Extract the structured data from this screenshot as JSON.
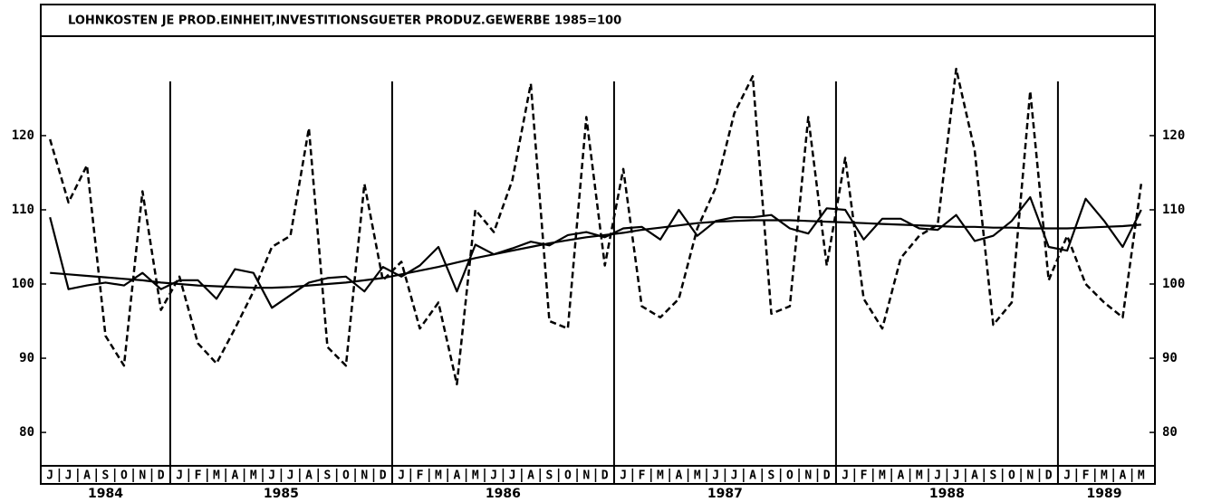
{
  "chart_data": {
    "type": "line",
    "title": "LOHNKOSTEN JE PROD.EINHEIT,INVESTITIONSGUETER PRODUZ.GEWERBE 1985=100",
    "years": [
      {
        "year": "1984",
        "months": [
          "J",
          "J",
          "A",
          "S",
          "O",
          "N",
          "D"
        ]
      },
      {
        "year": "1985",
        "months": [
          "J",
          "F",
          "M",
          "A",
          "M",
          "J",
          "J",
          "A",
          "S",
          "O",
          "N",
          "D"
        ]
      },
      {
        "year": "1986",
        "months": [
          "J",
          "F",
          "M",
          "A",
          "M",
          "J",
          "J",
          "A",
          "S",
          "O",
          "N",
          "D"
        ]
      },
      {
        "year": "1987",
        "months": [
          "J",
          "F",
          "M",
          "A",
          "M",
          "J",
          "J",
          "A",
          "S",
          "O",
          "N",
          "D"
        ]
      },
      {
        "year": "1988",
        "months": [
          "J",
          "F",
          "M",
          "A",
          "M",
          "J",
          "J",
          "A",
          "S",
          "O",
          "N",
          "D"
        ]
      },
      {
        "year": "1989",
        "months": [
          "J",
          "F",
          "M",
          "A",
          "M"
        ]
      }
    ],
    "series": [
      {
        "color": "#000000",
        "style": "dashed",
        "values": [
          119.5,
          111,
          116,
          93,
          89,
          112.5,
          96.5,
          101,
          92,
          89.3,
          94,
          99,
          105,
          106.5,
          121,
          91.5,
          89,
          113.5,
          100.5,
          103,
          94,
          97.5,
          86.5,
          110,
          107,
          114,
          127,
          95,
          94,
          122.5,
          102.5,
          115.5,
          97,
          95.5,
          98,
          107.5,
          113,
          123,
          128,
          96,
          97,
          122.5,
          102.5,
          117,
          98,
          94,
          103.5,
          106.5,
          108,
          129,
          118,
          94.5,
          97.5,
          126,
          100.5,
          106.5,
          100,
          97.5,
          95.5,
          113.5
        ]
      },
      {
        "color": "#000000",
        "style": "solid",
        "values": [
          109,
          99.3,
          99.8,
          100.2,
          99.8,
          101.5,
          99.3,
          100.5,
          100.5,
          98,
          102,
          101.5,
          96.8,
          98.5,
          100.2,
          100.8,
          101,
          99,
          102.3,
          101,
          102.5,
          105,
          99,
          105.3,
          104,
          104.8,
          105.7,
          105.2,
          106.6,
          107,
          106.3,
          107.5,
          107.7,
          106,
          110,
          106.5,
          108.5,
          109,
          109,
          109.3,
          107.5,
          106.8,
          110.2,
          110,
          106,
          108.8,
          108.8,
          107.5,
          107.3,
          109.3,
          105.8,
          106.5,
          108.5,
          111.7,
          105,
          104.5,
          111.5,
          108.5,
          105,
          110
        ]
      },
      {
        "color": "#000000",
        "style": "solid",
        "values": [
          101.5,
          101.3,
          101.1,
          100.9,
          100.7,
          100.5,
          100.2,
          100,
          99.8,
          99.7,
          99.6,
          99.5,
          99.5,
          99.6,
          99.8,
          100,
          100.2,
          100.5,
          100.8,
          101.3,
          101.8,
          102.3,
          102.9,
          103.5,
          104,
          104.5,
          105,
          105.5,
          105.9,
          106.3,
          106.6,
          106.9,
          107.3,
          107.6,
          107.9,
          108.2,
          108.4,
          108.5,
          108.6,
          108.6,
          108.6,
          108.5,
          108.4,
          108.3,
          108.2,
          108.1,
          108,
          107.9,
          107.8,
          107.7,
          107.7,
          107.6,
          107.6,
          107.5,
          107.5,
          107.5,
          107.6,
          107.7,
          107.8,
          108
        ]
      }
    ],
    "ylim": [
      75.5,
      133.4
    ],
    "yticks": [
      80,
      90,
      100,
      110,
      120
    ]
  }
}
